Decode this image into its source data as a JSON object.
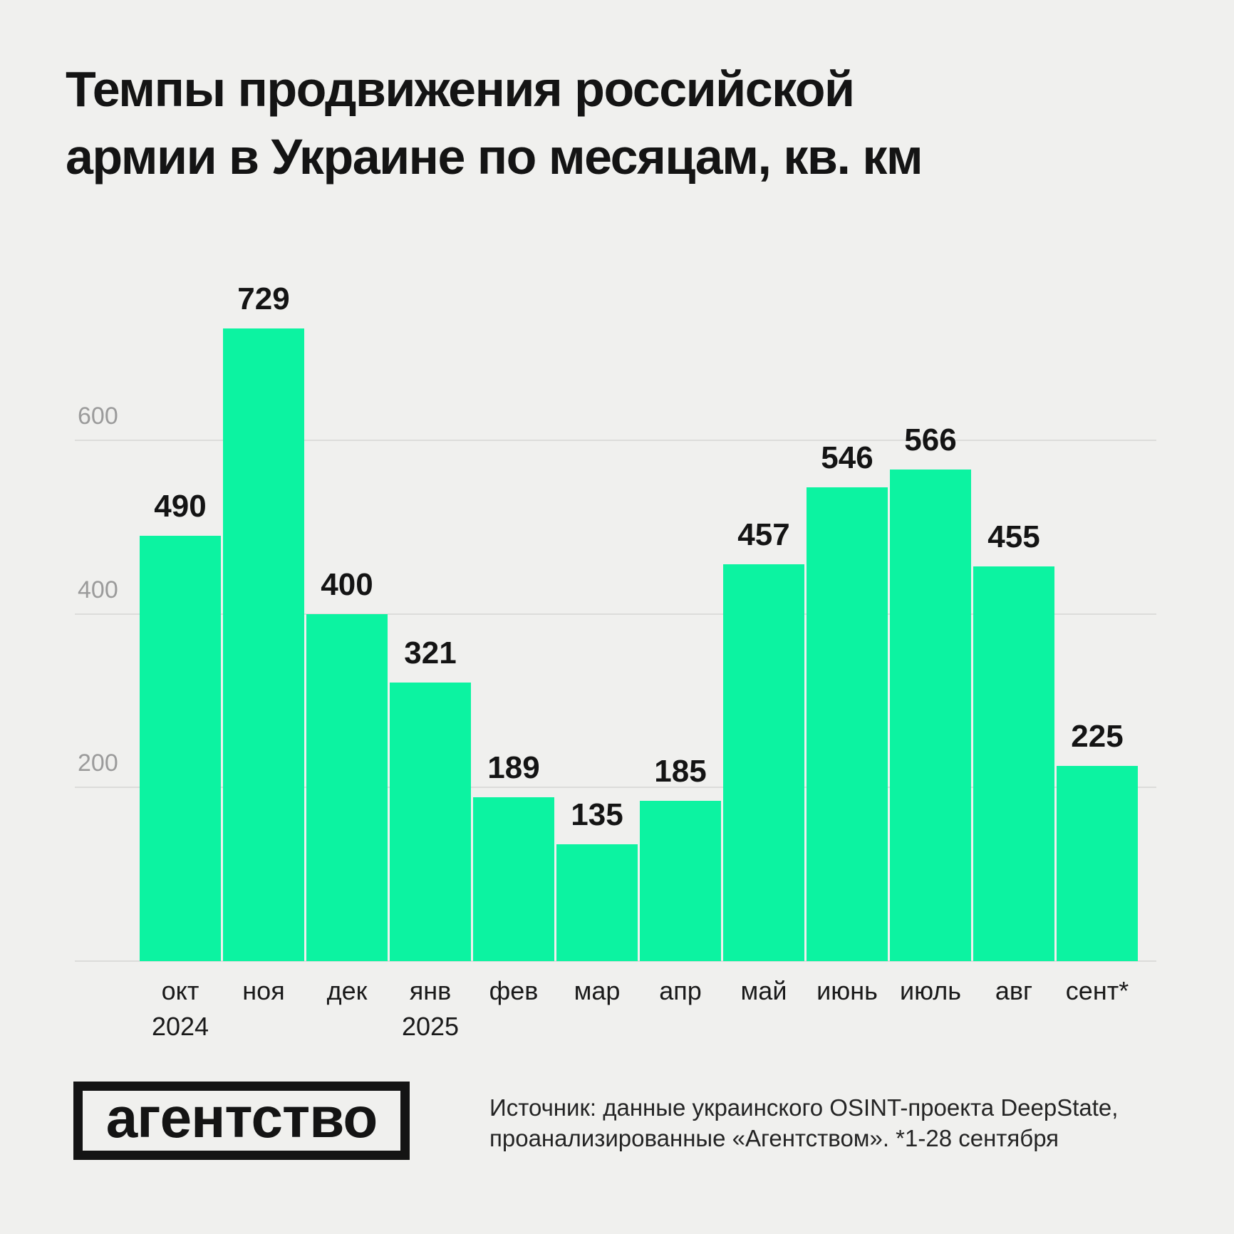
{
  "title": "Темпы продвижения российской\nармии в Украине по месяцам, кв. км",
  "chart_data": {
    "type": "bar",
    "title": "Темпы продвижения российской армии в Украине по месяцам, кв. км",
    "categories": [
      "окт",
      "ноя",
      "дек",
      "янв",
      "фев",
      "мар",
      "апр",
      "май",
      "июнь",
      "июль",
      "авг",
      "сент*"
    ],
    "values": [
      490,
      729,
      400,
      321,
      189,
      135,
      185,
      457,
      546,
      566,
      455,
      225
    ],
    "xlabel": "",
    "ylabel": "",
    "ylim": [
      0,
      760
    ],
    "yticks": [
      200,
      400,
      600
    ],
    "grid": true,
    "legend": false,
    "bar_color": "#0cf3a1",
    "year_markers": [
      {
        "label": "2024",
        "slot": 0
      },
      {
        "label": "2025",
        "slot": 3
      }
    ]
  },
  "footer": {
    "logo": "агентство",
    "source": "Источник: данные украинского OSINT-проекта DeepState,\nпроанализированные «Агентством». *1-28 сентября"
  },
  "colors": {
    "background": "#f0f0ee",
    "bar": "#0cf3a1",
    "gridline": "#dcdcda",
    "axis_label_gray": "#9b9b9b",
    "text_black": "#141414"
  }
}
